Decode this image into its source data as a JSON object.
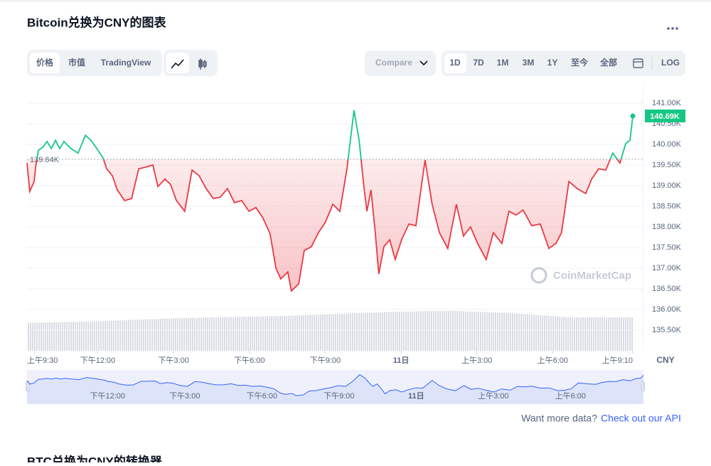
{
  "header": {
    "title": "Bitcoin兑换为CNY的图表"
  },
  "tabs": [
    "价格",
    "市值",
    "TradingView"
  ],
  "compare": "Compare",
  "ranges": [
    "1D",
    "7D",
    "1M",
    "3M",
    "1Y",
    "至今",
    "全部"
  ],
  "log": "LOG",
  "chart_data": {
    "type": "line",
    "currency": "CNY",
    "x": [
      -0.3,
      -0.19,
      -0.02,
      0.04,
      0.15,
      0.32,
      0.49,
      0.66,
      0.83,
      0.99,
      1.16,
      1.44,
      1.72,
      2.01,
      2.23,
      2.43,
      2.71,
      2.85,
      3.08,
      3.27,
      3.56,
      3.84,
      4.12,
      4.4,
      4.68,
      4.88,
      5.16,
      5.38,
      5.61,
      5.94,
      6.23,
      6.51,
      6.79,
      7.07,
      7.35,
      7.63,
      7.91,
      8.2,
      8.48,
      8.76,
      9.04,
      9.32,
      9.55,
      9.74,
      10.02,
      10.16,
      10.45,
      10.67,
      10.95,
      11.23,
      11.51,
      11.8,
      12.08,
      12.36,
      12.64,
      12.84,
      13.03,
      13.15,
      13.31,
      13.48,
      13.62,
      13.82,
      14.05,
      14.27,
      14.52,
      14.81,
      15.09,
      15.45,
      15.73,
      16.02,
      16.35,
      16.69,
      16.97,
      17.25,
      17.53,
      17.87,
      18.15,
      18.49,
      18.77,
      19.05,
      19.33,
      19.67,
      20.01,
      20.35,
      20.63,
      20.85,
      21.14,
      21.47,
      21.81,
      22.04,
      22.32,
      22.6,
      22.88,
      23.16,
      23.39,
      23.56,
      23.67
    ],
    "values": [
      139.55,
      138.86,
      139.1,
      139.45,
      139.86,
      139.93,
      140.07,
      139.9,
      140.1,
      139.9,
      140.07,
      139.9,
      139.79,
      140.22,
      140.1,
      139.93,
      139.67,
      139.41,
      139.24,
      138.9,
      138.64,
      138.69,
      139.41,
      139.45,
      139.5,
      138.98,
      139.16,
      139.03,
      138.64,
      138.38,
      139.38,
      139.24,
      138.93,
      138.69,
      138.72,
      138.93,
      138.59,
      138.64,
      138.38,
      138.47,
      138.21,
      137.83,
      137.0,
      136.74,
      136.91,
      136.45,
      136.62,
      137.43,
      137.52,
      137.86,
      138.12,
      138.55,
      138.38,
      139.41,
      140.83,
      140.1,
      138.98,
      138.38,
      138.9,
      137.86,
      136.86,
      137.52,
      137.69,
      137.21,
      137.69,
      138.07,
      138.03,
      139.62,
      138.55,
      137.86,
      137.48,
      138.55,
      137.78,
      138.0,
      137.6,
      137.21,
      137.86,
      137.6,
      138.38,
      138.29,
      138.41,
      138.03,
      138.07,
      137.48,
      137.6,
      137.86,
      139.1,
      138.93,
      138.81,
      139.16,
      139.41,
      139.38,
      139.79,
      139.55,
      140.02,
      140.1,
      140.69
    ],
    "up_color": "#16c784",
    "down_color": "#ea3943",
    "navigator_color": "#3861fb",
    "baseline": {
      "value": 139.64,
      "label": "139.64K"
    },
    "last_price": {
      "value": 140.69,
      "label": "140.69K"
    },
    "xlim": [
      -0.3,
      23.67
    ],
    "xticks": [
      {
        "value": 0,
        "label": "上午9:30"
      },
      {
        "value": 2.5,
        "label": "下午12:00"
      },
      {
        "value": 5.5,
        "label": "下午3:00"
      },
      {
        "value": 8.5,
        "label": "下午6:00"
      },
      {
        "value": 11.5,
        "label": "下午9:00"
      },
      {
        "value": 14.5,
        "label": "11日"
      },
      {
        "value": 17.5,
        "label": "上午3:00"
      },
      {
        "value": 20.5,
        "label": "上午6:00"
      },
      {
        "value": 23.67,
        "label": "上午9:10"
      }
    ],
    "ylim": [
      135,
      141.5
    ],
    "yticks": [
      {
        "value": 141,
        "label": "141.00K"
      },
      {
        "value": 140.5,
        "label": "140.50K"
      },
      {
        "value": 140,
        "label": "140.00K"
      },
      {
        "value": 139.5,
        "label": "139.50K"
      },
      {
        "value": 139,
        "label": "139.00K"
      },
      {
        "value": 138.5,
        "label": "138.50K"
      },
      {
        "value": 138,
        "label": "138.00K"
      },
      {
        "value": 137.5,
        "label": "137.50K"
      },
      {
        "value": 137,
        "label": "137.00K"
      },
      {
        "value": 136.5,
        "label": "136.50K"
      },
      {
        "value": 136,
        "label": "136.00K"
      },
      {
        "value": 135.5,
        "label": "135.50K"
      }
    ],
    "grid": true,
    "watermark": "CoinMarketCap"
  },
  "footer": {
    "question": "Want more data?",
    "link": "Check out our API",
    "next_title": "BTC兑换为CNY的转换器"
  }
}
